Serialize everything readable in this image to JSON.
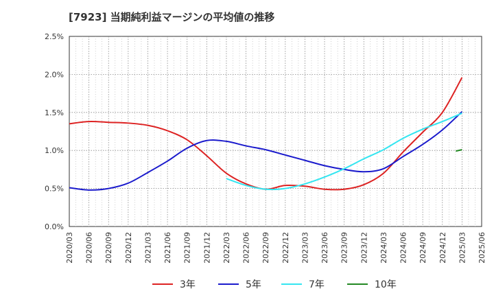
{
  "chart_data": {
    "type": "line",
    "title": "[7923]  当期純利益マージンの平均値の推移",
    "xlabel": "",
    "ylabel": "",
    "x": [
      "2020/03",
      "2020/06",
      "2020/09",
      "2020/12",
      "2021/03",
      "2021/06",
      "2021/09",
      "2021/12",
      "2022/03",
      "2022/06",
      "2022/09",
      "2022/12",
      "2023/03",
      "2023/06",
      "2023/09",
      "2023/12",
      "2024/03",
      "2024/06",
      "2024/09",
      "2024/12",
      "2025/03",
      "2025/06"
    ],
    "y_ticks": [
      "0.0%",
      "0.5%",
      "1.0%",
      "1.5%",
      "2.0%",
      "2.5%"
    ],
    "ylim": [
      0,
      2.5
    ],
    "grid": true,
    "legend_position": "bottom",
    "series": [
      {
        "name": "3年",
        "color": "#dd2222",
        "values": [
          1.35,
          1.38,
          1.37,
          1.36,
          1.33,
          1.26,
          1.14,
          0.93,
          0.7,
          0.56,
          0.49,
          0.54,
          0.53,
          0.49,
          0.49,
          0.55,
          0.7,
          0.98,
          1.24,
          1.5,
          1.96,
          null
        ]
      },
      {
        "name": "5年",
        "color": "#1a1acc",
        "values": [
          0.51,
          0.48,
          0.5,
          0.57,
          0.71,
          0.86,
          1.03,
          1.13,
          1.12,
          1.06,
          1.01,
          0.94,
          0.87,
          0.8,
          0.75,
          0.72,
          0.76,
          0.92,
          1.08,
          1.27,
          1.51,
          null
        ]
      },
      {
        "name": "7年",
        "color": "#33e5f0",
        "values": [
          null,
          null,
          null,
          null,
          null,
          null,
          null,
          null,
          0.63,
          0.54,
          0.49,
          0.5,
          0.56,
          0.65,
          0.76,
          0.89,
          1.01,
          1.16,
          1.28,
          1.38,
          1.49,
          null
        ]
      },
      {
        "name": "10年",
        "color": "#228822",
        "values": [
          null,
          null,
          null,
          null,
          null,
          null,
          null,
          null,
          null,
          null,
          null,
          null,
          null,
          null,
          null,
          null,
          null,
          null,
          null,
          null,
          1.01,
          null
        ]
      }
    ]
  }
}
